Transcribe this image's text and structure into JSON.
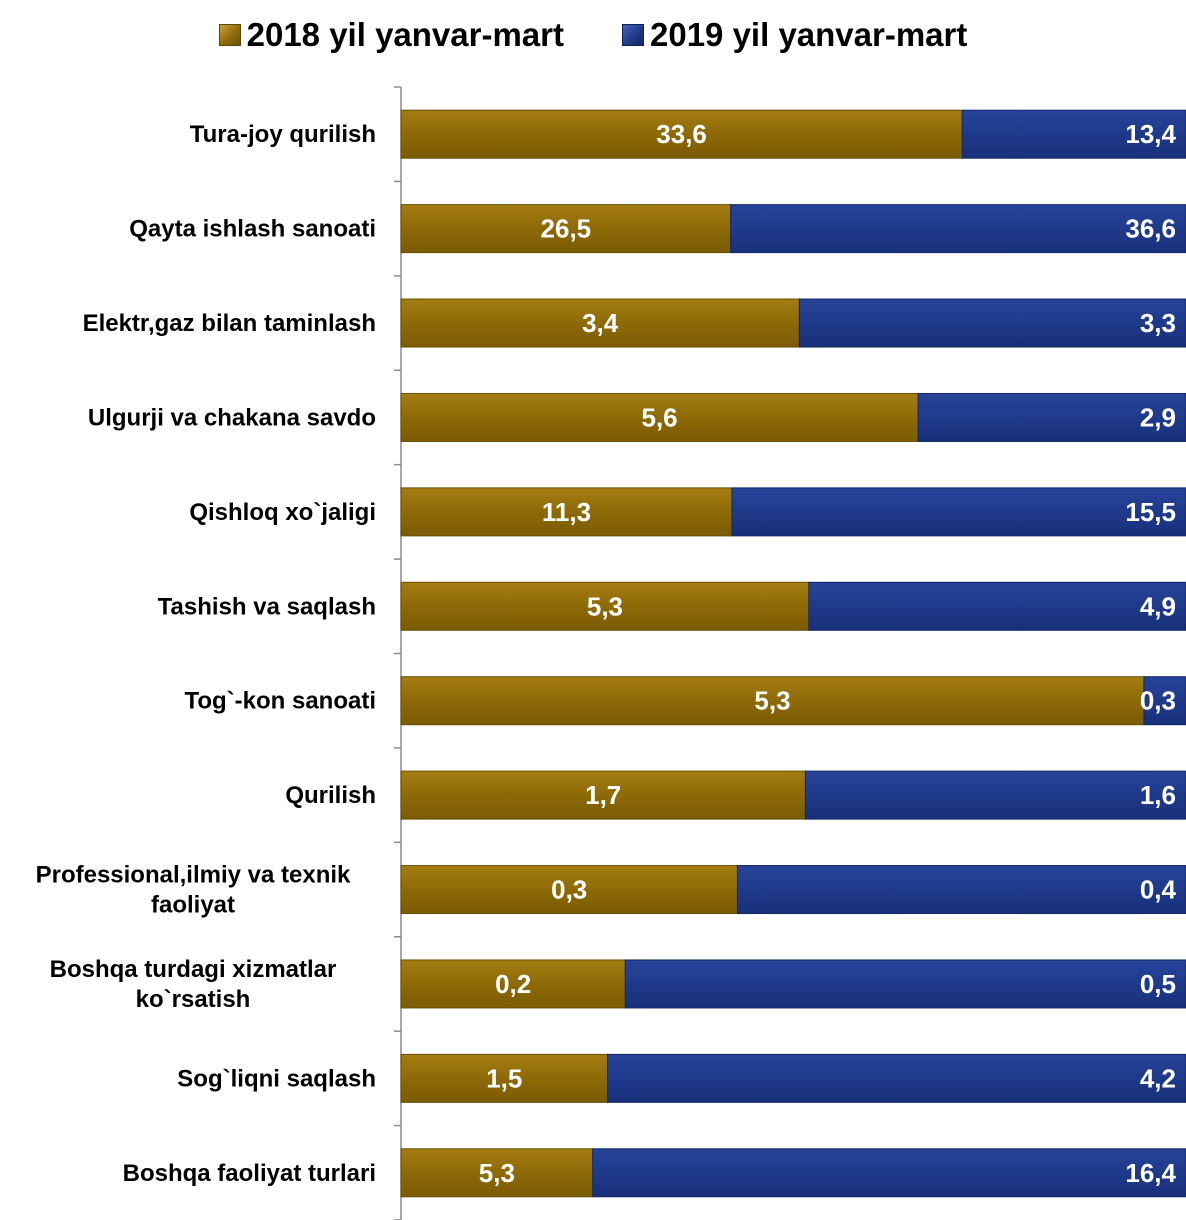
{
  "chart_data": {
    "type": "bar",
    "orientation": "horizontal",
    "stacked": "percent",
    "categories": [
      "Tura-joy qurilish",
      "Qayta ishlash sanoati",
      "Elektr,gaz bilan taminlash",
      "Ulgurji va chakana savdo",
      "Qishloq xo`jaligi",
      "Tashish va saqlash",
      "Tog`-kon sanoati",
      "Qurilish",
      "Professional,ilmiy va texnik faoliyat",
      "Boshqa turdagi xizmatlar ko`rsatish",
      "Sog`liqni saqlash",
      "Boshqa faoliyat turlari"
    ],
    "series": [
      {
        "name": "2018 yil yanvar-mart",
        "values": [
          33.6,
          26.5,
          3.4,
          5.6,
          11.3,
          5.3,
          5.3,
          1.7,
          0.3,
          0.2,
          1.5,
          5.3
        ],
        "labels": [
          "33,6",
          "26,5",
          "3,4",
          "5,6",
          "11,3",
          "5,3",
          "5,3",
          "1,7",
          "0,3",
          "0,2",
          "1,5",
          "5,3"
        ],
        "color": "#8E6A07"
      },
      {
        "name": "2019 yil yanvar-mart",
        "values": [
          13.4,
          36.6,
          3.3,
          2.9,
          15.5,
          4.9,
          0.3,
          1.6,
          0.4,
          0.5,
          4.2,
          16.4
        ],
        "labels": [
          "13,4",
          "36,6",
          "3,3",
          "2,9",
          "15,5",
          "4,9",
          "0,3",
          "1,6",
          "0,4",
          "0,5",
          "4,2",
          "16,4"
        ],
        "color": "#1F3A8A"
      }
    ],
    "title": "",
    "xlabel": "",
    "ylabel": "",
    "legend_position": "top",
    "grid": false
  }
}
